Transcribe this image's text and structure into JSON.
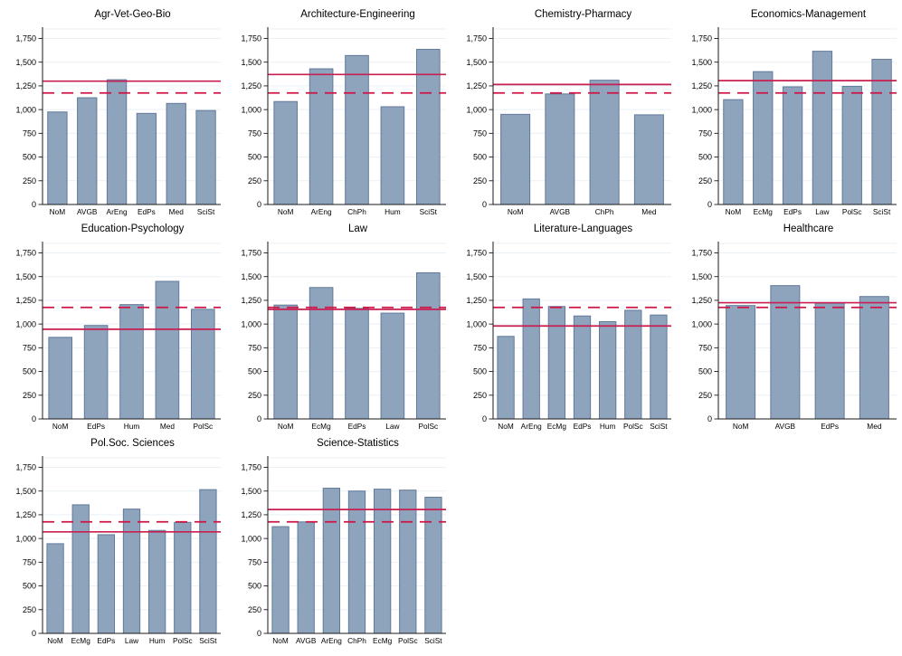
{
  "page": {
    "background": "#ffffff",
    "description": "Grid of ten bar-chart panels by discipline group, each with a solid group-mean reference line and a dashed overall-mean reference line"
  },
  "colors": {
    "bar_fill": "#8ea4bc",
    "bar_stroke": "#62799b",
    "grid": "#e9f1f6",
    "axis": "#1a1a1a",
    "text": "#000000",
    "ref_solid": "#c81e50",
    "ref_dashed": "#d01245"
  },
  "axis": {
    "ymin": 0,
    "ymax": 1750,
    "ymax_draw": 1850,
    "tick_step": 250,
    "y_ticks": [
      {
        "value": 0,
        "label": "0"
      },
      {
        "value": 250,
        "label": "250"
      },
      {
        "value": 500,
        "label": "500"
      },
      {
        "value": 750,
        "label": "750"
      },
      {
        "value": 1000,
        "label": "1,000"
      },
      {
        "value": 1250,
        "label": "1,250"
      },
      {
        "value": 1500,
        "label": "1,500"
      },
      {
        "value": 1750,
        "label": "1,750"
      }
    ],
    "grid_on": true
  },
  "chart_data": [
    {
      "type": "bar",
      "title": "Agr-Vet-Geo-Bio",
      "categories": [
        "NoM",
        "AVGB",
        "ArEng",
        "EdPs",
        "Med",
        "SciSt"
      ],
      "values": [
        975,
        1125,
        1315,
        960,
        1065,
        990
      ],
      "ref_line_solid": 1300,
      "ref_line_dashed": 1175,
      "xlabel": "",
      "ylabel": "",
      "ylim": [
        0,
        1750
      ]
    },
    {
      "type": "bar",
      "title": "Architecture-Engineering",
      "categories": [
        "NoM",
        "ArEng",
        "ChPh",
        "Hum",
        "SciSt"
      ],
      "values": [
        1085,
        1430,
        1570,
        1030,
        1635
      ],
      "ref_line_solid": 1370,
      "ref_line_dashed": 1175,
      "xlabel": "",
      "ylabel": "",
      "ylim": [
        0,
        1750
      ]
    },
    {
      "type": "bar",
      "title": "Chemistry-Pharmacy",
      "categories": [
        "NoM",
        "AVGB",
        "ChPh",
        "Med"
      ],
      "values": [
        950,
        1165,
        1310,
        945
      ],
      "ref_line_solid": 1265,
      "ref_line_dashed": 1175,
      "xlabel": "",
      "ylabel": "",
      "ylim": [
        0,
        1750
      ]
    },
    {
      "type": "bar",
      "title": "Economics-Management",
      "categories": [
        "NoM",
        "EcMg",
        "EdPs",
        "Law",
        "PolSc",
        "SciSt"
      ],
      "values": [
        1105,
        1400,
        1240,
        1615,
        1245,
        1530
      ],
      "ref_line_solid": 1305,
      "ref_line_dashed": 1175,
      "xlabel": "",
      "ylabel": "",
      "ylim": [
        0,
        1750
      ]
    },
    {
      "type": "bar",
      "title": "Education-Psychology",
      "categories": [
        "NoM",
        "EdPs",
        "Hum",
        "Med",
        "PolSc"
      ],
      "values": [
        860,
        985,
        1205,
        1450,
        1155
      ],
      "ref_line_solid": 945,
      "ref_line_dashed": 1175,
      "xlabel": "",
      "ylabel": "",
      "ylim": [
        0,
        1750
      ]
    },
    {
      "type": "bar",
      "title": "Law",
      "categories": [
        "NoM",
        "EcMg",
        "EdPs",
        "Law",
        "PolSc"
      ],
      "values": [
        1200,
        1385,
        1165,
        1115,
        1540
      ],
      "ref_line_solid": 1155,
      "ref_line_dashed": 1175,
      "xlabel": "",
      "ylabel": "",
      "ylim": [
        0,
        1750
      ]
    },
    {
      "type": "bar",
      "title": "Literature-Languages",
      "categories": [
        "NoM",
        "ArEng",
        "EcMg",
        "EdPs",
        "Hum",
        "PolSc",
        "SciSt"
      ],
      "values": [
        870,
        1265,
        1185,
        1085,
        1025,
        1145,
        1095
      ],
      "ref_line_solid": 980,
      "ref_line_dashed": 1175,
      "xlabel": "",
      "ylabel": "",
      "ylim": [
        0,
        1750
      ]
    },
    {
      "type": "bar",
      "title": "Healthcare",
      "categories": [
        "NoM",
        "AVGB",
        "EdPs",
        "Med"
      ],
      "values": [
        1195,
        1405,
        1220,
        1290
      ],
      "ref_line_solid": 1225,
      "ref_line_dashed": 1175,
      "xlabel": "",
      "ylabel": "",
      "ylim": [
        0,
        1750
      ]
    },
    {
      "type": "bar",
      "title": "Pol.Soc. Sciences",
      "categories": [
        "NoM",
        "EcMg",
        "EdPs",
        "Law",
        "Hum",
        "PolSc",
        "SciSt"
      ],
      "values": [
        945,
        1355,
        1040,
        1310,
        1085,
        1170,
        1515
      ],
      "ref_line_solid": 1070,
      "ref_line_dashed": 1175,
      "xlabel": "",
      "ylabel": "",
      "ylim": [
        0,
        1750
      ]
    },
    {
      "type": "bar",
      "title": "Science-Statistics",
      "categories": [
        "NoM",
        "AVGB",
        "ArEng",
        "ChPh",
        "EcMg",
        "PolSc",
        "SciSt"
      ],
      "values": [
        1125,
        1175,
        1530,
        1500,
        1520,
        1510,
        1435
      ],
      "ref_line_solid": 1305,
      "ref_line_dashed": 1175,
      "xlabel": "",
      "ylabel": "",
      "ylim": [
        0,
        1750
      ]
    }
  ]
}
